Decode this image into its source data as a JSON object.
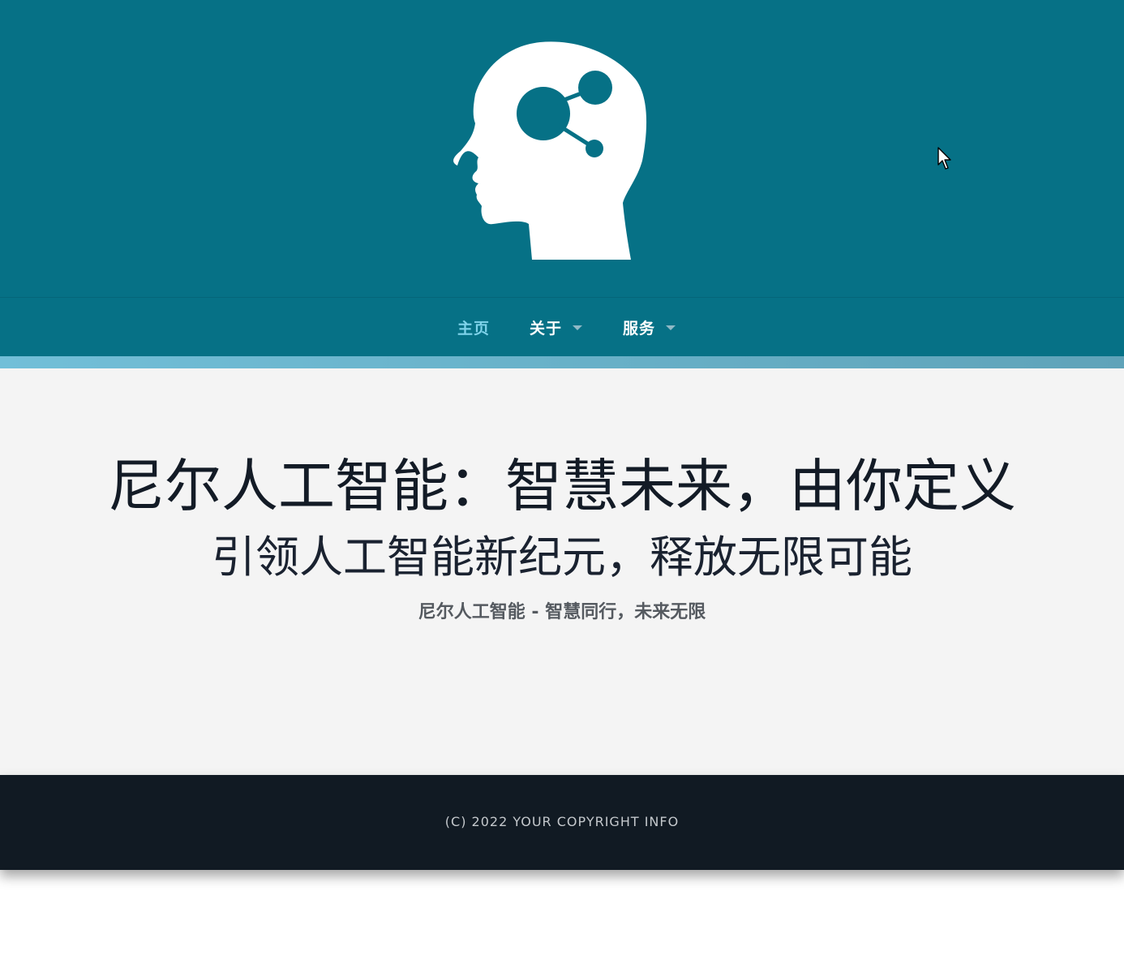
{
  "header": {
    "logo_icon": "brain-head-icon",
    "background_color": "#067186"
  },
  "nav": {
    "items": [
      {
        "label": "主页",
        "active": true,
        "has_dropdown": false
      },
      {
        "label": "关于",
        "active": false,
        "has_dropdown": true
      },
      {
        "label": "服务",
        "active": false,
        "has_dropdown": true
      }
    ],
    "active_color": "#7fd3ea"
  },
  "hero": {
    "title": "尼尔人工智能：智慧未来，由你定义",
    "subtitle": "引领人工智能新纪元，释放无限可能",
    "tagline": "尼尔人工智能 - 智慧同行，未来无限"
  },
  "footer": {
    "copyright": "(C) 2022 YOUR COPYRIGHT INFO"
  }
}
